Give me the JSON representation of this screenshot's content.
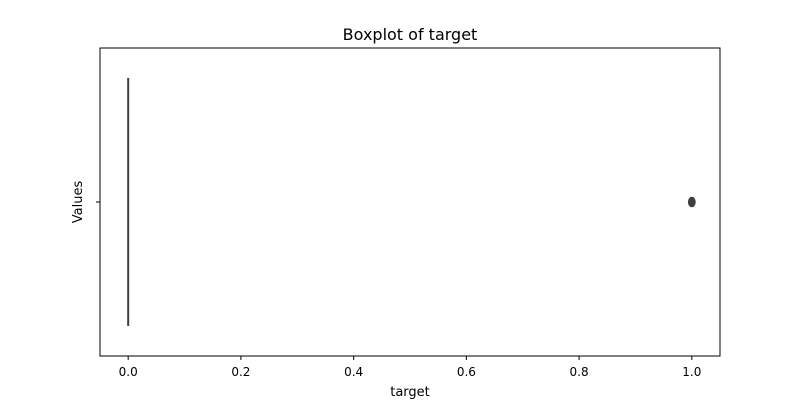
{
  "chart_data": {
    "type": "boxplot",
    "title": "Boxplot of target",
    "xlabel": "target",
    "ylabel": "Values",
    "xlim": [
      -0.05,
      1.05
    ],
    "x_ticks": [
      0.0,
      0.2,
      0.4,
      0.6,
      0.8,
      1.0
    ],
    "x_tick_labels": [
      "0.0",
      "0.2",
      "0.4",
      "0.6",
      "0.8",
      "1.0"
    ],
    "y_tick_labels": [
      ""
    ],
    "grid": false,
    "box": {
      "min": 0.0,
      "q1": 0.0,
      "median": 0.0,
      "q3": 0.0,
      "max": 0.0,
      "outliers": [
        1.0
      ]
    },
    "colors": {
      "line": "#3f3f3f",
      "axis": "#000000",
      "outlier": "#3f3f3f"
    }
  }
}
